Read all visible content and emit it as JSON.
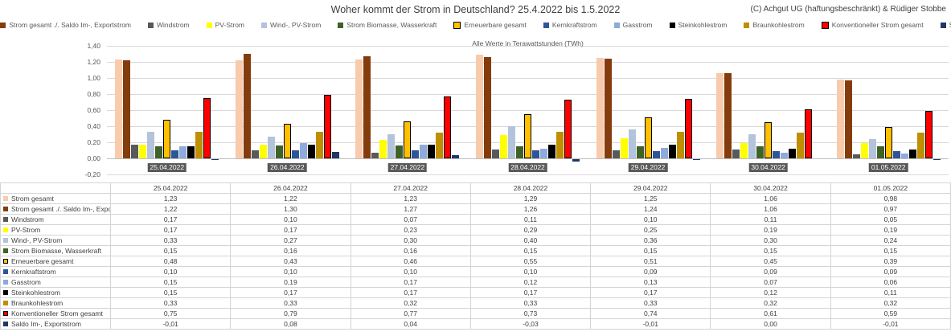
{
  "header": {
    "title": "Woher kommt der Strom in Deutschland? 25.4.2022 bis 1.5.2022",
    "copyright": "(C) Achgut UG (haftungsbeschränkt) & Rüdiger Stobbe"
  },
  "chart_data": {
    "type": "bar",
    "title": "Woher kommt der Strom in Deutschland? 25.4.2022 bis 1.5.2022",
    "subtitle": "Alle Werte in Terawattstunden (TWh)",
    "xlabel": "",
    "ylabel": "TWh",
    "ylim": [
      -0.2,
      1.4
    ],
    "ytick_values": [
      1.4,
      1.2,
      1.0,
      0.8,
      0.6,
      0.4,
      0.2,
      0.0,
      -0.2
    ],
    "ytick_labels": [
      "1,40",
      "1,20",
      "1,00",
      "0,80",
      "0,60",
      "0,40",
      "0,20",
      "0,00",
      "-0,20"
    ],
    "grid": true,
    "legend_position": "top",
    "categories": [
      "25.04.2022",
      "26.04.2022",
      "27.04.2022",
      "28.04.2022",
      "29.04.2022",
      "30.04.2022",
      "01.05.2022"
    ],
    "series": [
      {
        "name": "Strom gesamt",
        "color": "#F8CBAD",
        "border": null,
        "values": [
          1.23,
          1.22,
          1.23,
          1.29,
          1.25,
          1.06,
          0.98
        ]
      },
      {
        "name": "Strom gesamt ./. Saldo Im-, Exportstrom",
        "color": "#843C0C",
        "border": null,
        "values": [
          1.22,
          1.3,
          1.27,
          1.26,
          1.24,
          1.06,
          0.97
        ]
      },
      {
        "name": "Windstrom",
        "color": "#595959",
        "border": null,
        "values": [
          0.17,
          0.1,
          0.07,
          0.11,
          0.1,
          0.11,
          0.05
        ]
      },
      {
        "name": "PV-Strom",
        "color": "#FFFF00",
        "border": null,
        "values": [
          0.17,
          0.17,
          0.23,
          0.29,
          0.25,
          0.19,
          0.19
        ]
      },
      {
        "name": "Wind-, PV-Strom",
        "color": "#B4C3DC",
        "border": null,
        "values": [
          0.33,
          0.27,
          0.3,
          0.4,
          0.36,
          0.3,
          0.24
        ]
      },
      {
        "name": "Strom Biomasse, Wasserkraft",
        "color": "#3F6228",
        "border": null,
        "values": [
          0.15,
          0.16,
          0.16,
          0.15,
          0.15,
          0.15,
          0.15
        ]
      },
      {
        "name": "Erneuerbare gesamt",
        "color": "#FFC000",
        "border": "#000000",
        "values": [
          0.48,
          0.43,
          0.46,
          0.55,
          0.51,
          0.45,
          0.39
        ]
      },
      {
        "name": "Kernkraftstrom",
        "color": "#2E5597",
        "border": null,
        "values": [
          0.1,
          0.1,
          0.1,
          0.1,
          0.09,
          0.09,
          0.09
        ]
      },
      {
        "name": "Gasstrom",
        "color": "#8FAADC",
        "border": null,
        "values": [
          0.15,
          0.19,
          0.17,
          0.12,
          0.13,
          0.07,
          0.06
        ]
      },
      {
        "name": "Steinkohlestrom",
        "color": "#000000",
        "border": null,
        "values": [
          0.15,
          0.17,
          0.17,
          0.17,
          0.17,
          0.12,
          0.11
        ]
      },
      {
        "name": "Braunkohlestrom",
        "color": "#BF8F00",
        "border": null,
        "values": [
          0.33,
          0.33,
          0.32,
          0.33,
          0.33,
          0.32,
          0.32
        ]
      },
      {
        "name": "Konventioneller Strom gesamt",
        "color": "#FF0000",
        "border": "#000000",
        "values": [
          0.75,
          0.79,
          0.77,
          0.73,
          0.74,
          0.61,
          0.59
        ]
      },
      {
        "name": "Saldo Im-, Exportstrom",
        "color": "#1F3864",
        "border": null,
        "values": [
          -0.01,
          0.08,
          0.04,
          -0.03,
          -0.01,
          0.0,
          -0.01
        ]
      }
    ]
  },
  "table": {
    "header": [
      "",
      "25.04.2022",
      "26.04.2022",
      "27.04.2022",
      "28.04.2022",
      "29.04.2022",
      "30.04.2022",
      "01.05.2022"
    ],
    "rows": [
      {
        "label": "Strom gesamt",
        "values": [
          "1,23",
          "1,22",
          "1,23",
          "1,29",
          "1,25",
          "1,06",
          "0,98"
        ]
      },
      {
        "label": "Strom gesamt ./. Saldo Im-, Exportstrom",
        "values": [
          "1,22",
          "1,30",
          "1,27",
          "1,26",
          "1,24",
          "1,06",
          "0,97"
        ]
      },
      {
        "label": "Windstrom",
        "values": [
          "0,17",
          "0,10",
          "0,07",
          "0,11",
          "0,10",
          "0,11",
          "0,05"
        ]
      },
      {
        "label": "PV-Strom",
        "values": [
          "0,17",
          "0,17",
          "0,23",
          "0,29",
          "0,25",
          "0,19",
          "0,19"
        ]
      },
      {
        "label": "Wind-, PV-Strom",
        "values": [
          "0,33",
          "0,27",
          "0,30",
          "0,40",
          "0,36",
          "0,30",
          "0,24"
        ]
      },
      {
        "label": "Strom Biomasse, Wasserkraft",
        "values": [
          "0,15",
          "0,16",
          "0,16",
          "0,15",
          "0,15",
          "0,15",
          "0,15"
        ]
      },
      {
        "label": "Erneuerbare gesamt",
        "values": [
          "0,48",
          "0,43",
          "0,46",
          "0,55",
          "0,51",
          "0,45",
          "0,39"
        ]
      },
      {
        "label": "Kernkraftstrom",
        "values": [
          "0,10",
          "0,10",
          "0,10",
          "0,10",
          "0,09",
          "0,09",
          "0,09"
        ]
      },
      {
        "label": "Gasstrom",
        "values": [
          "0,15",
          "0,19",
          "0,17",
          "0,12",
          "0,13",
          "0,07",
          "0,06"
        ]
      },
      {
        "label": "Steinkohlestrom",
        "values": [
          "0,15",
          "0,17",
          "0,17",
          "0,17",
          "0,17",
          "0,12",
          "0,11"
        ]
      },
      {
        "label": "Braunkohlestrom",
        "values": [
          "0,33",
          "0,33",
          "0,32",
          "0,33",
          "0,33",
          "0,32",
          "0,32"
        ]
      },
      {
        "label": "Konventioneller Strom gesamt",
        "values": [
          "0,75",
          "0,79",
          "0,77",
          "0,73",
          "0,74",
          "0,61",
          "0,59"
        ]
      },
      {
        "label": "Saldo Im-, Exportstrom",
        "values": [
          "-0,01",
          "0,08",
          "0,04",
          "-0,03",
          "-0,01",
          "0,00",
          "-0,01"
        ]
      }
    ]
  }
}
